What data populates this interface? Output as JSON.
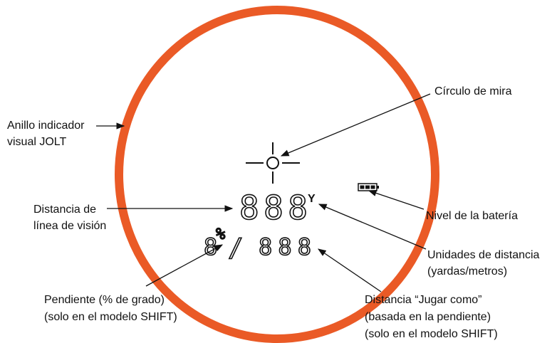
{
  "display": {
    "distance": "888",
    "unit": "Y",
    "slope": "8",
    "percent": "%",
    "slash": "/",
    "plays_like": "888"
  },
  "callouts": {
    "ring": [
      "Anillo indicador",
      "visual JOLT"
    ],
    "reticle": [
      "Círculo de mira"
    ],
    "line_of_sight": [
      "Distancia de",
      "línea de visión"
    ],
    "battery": [
      "Nivel de la batería"
    ],
    "units": [
      "Unidades de distancia",
      "(yardas/metros)"
    ],
    "slope": [
      "Pendiente (% de grado)",
      "(solo en el modelo SHIFT)"
    ],
    "plays_like": [
      "Distancia “Jugar como”",
      "(basada en la pendiente)",
      "(solo en el modelo SHIFT)"
    ]
  }
}
